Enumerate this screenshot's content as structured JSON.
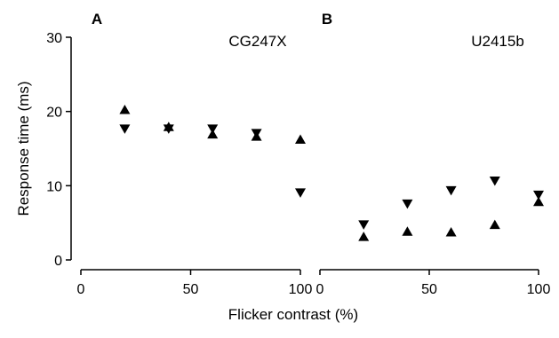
{
  "chart_data": [
    {
      "panel_label": "A",
      "type": "scatter",
      "title": "CG247X",
      "xlabel": "Flicker contrast (%)",
      "ylabel": "Response time (ms)",
      "xlim": [
        0,
        100
      ],
      "ylim": [
        0,
        30
      ],
      "xticks": [
        0,
        50,
        100
      ],
      "yticks": [
        0,
        10,
        20,
        30
      ],
      "grid": false,
      "series": [
        {
          "marker": "triangle-up",
          "x": [
            20,
            40,
            60,
            80,
            100
          ],
          "y": [
            20.2,
            17.9,
            16.9,
            16.6,
            16.2
          ]
        },
        {
          "marker": "triangle-down",
          "x": [
            20,
            40,
            60,
            80,
            100
          ],
          "y": [
            17.7,
            17.7,
            17.7,
            17.1,
            9.1
          ]
        }
      ]
    },
    {
      "panel_label": "B",
      "type": "scatter",
      "title": "U2415b",
      "xlabel": "Flicker contrast (%)",
      "ylabel": "",
      "xlim": [
        0,
        100
      ],
      "ylim": [
        0,
        30
      ],
      "xticks": [
        0,
        50,
        100
      ],
      "yticks": [],
      "grid": false,
      "series": [
        {
          "marker": "triangle-up",
          "x": [
            20,
            40,
            60,
            80,
            100
          ],
          "y": [
            3.1,
            3.8,
            3.7,
            4.7,
            7.8
          ]
        },
        {
          "marker": "triangle-down",
          "x": [
            20,
            40,
            60,
            80,
            100
          ],
          "y": [
            4.8,
            7.6,
            9.4,
            10.7,
            8.8
          ]
        }
      ]
    }
  ]
}
